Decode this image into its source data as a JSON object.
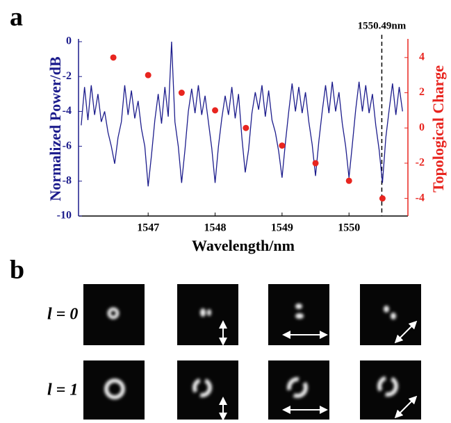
{
  "panel_labels": [
    "a",
    "b"
  ],
  "chart_data": {
    "type": "line",
    "xlabel": "Wavelength/nm",
    "ylabel": "Normalized Power/dB",
    "y2label": "Topological Charge",
    "xlim": [
      1545.96,
      1550.88
    ],
    "xticks": [
      1547,
      1548,
      1549,
      1550
    ],
    "ylim": [
      -10,
      0
    ],
    "yticks": [
      -10,
      -8,
      -6,
      -4,
      -2,
      0
    ],
    "y2lim": [
      -5,
      4.9
    ],
    "y2ticks": [
      -4,
      -2,
      0,
      2,
      4
    ],
    "y_color": "#1c1c8c",
    "y2_color": "#e8251f",
    "series": [
      {
        "type": "line",
        "color": "#1c1c8c",
        "x": [
          1546.0,
          1546.05,
          1546.1,
          1546.15,
          1546.2,
          1546.25,
          1546.3,
          1546.35,
          1546.4,
          1546.45,
          1546.5,
          1546.55,
          1546.6,
          1546.65,
          1546.7,
          1546.75,
          1546.8,
          1546.85,
          1546.9,
          1546.95,
          1547.0,
          1547.05,
          1547.1,
          1547.15,
          1547.2,
          1547.25,
          1547.3,
          1547.35,
          1547.4,
          1547.45,
          1547.5,
          1547.55,
          1547.6,
          1547.65,
          1547.7,
          1547.75,
          1547.8,
          1547.85,
          1547.9,
          1547.95,
          1548.0,
          1548.05,
          1548.1,
          1548.15,
          1548.2,
          1548.25,
          1548.3,
          1548.35,
          1548.4,
          1548.45,
          1548.5,
          1548.55,
          1548.6,
          1548.65,
          1548.7,
          1548.75,
          1548.8,
          1548.85,
          1548.9,
          1548.95,
          1549.0,
          1549.05,
          1549.1,
          1549.15,
          1549.2,
          1549.25,
          1549.3,
          1549.35,
          1549.4,
          1549.45,
          1549.5,
          1549.55,
          1549.6,
          1549.65,
          1549.7,
          1549.75,
          1549.8,
          1549.85,
          1549.9,
          1549.95,
          1550.0,
          1550.05,
          1550.1,
          1550.15,
          1550.2,
          1550.25,
          1550.3,
          1550.35,
          1550.4,
          1550.45,
          1550.5,
          1550.55,
          1550.6,
          1550.65,
          1550.7,
          1550.75,
          1550.8
        ],
        "values": [
          -4.8,
          -2.6,
          -4.5,
          -2.5,
          -4.2,
          -3.0,
          -4.6,
          -4.0,
          -5.2,
          -6.0,
          -7.0,
          -5.5,
          -4.6,
          -2.5,
          -4.2,
          -2.8,
          -4.4,
          -3.4,
          -5.0,
          -6.0,
          -8.3,
          -6.5,
          -4.5,
          -3.0,
          -4.7,
          -2.6,
          -4.3,
          0,
          -4.6,
          -6.0,
          -8.1,
          -6.2,
          -4.0,
          -2.7,
          -4.1,
          -2.5,
          -4.2,
          -3.1,
          -4.6,
          -6.1,
          -8.1,
          -6.0,
          -4.4,
          -3.1,
          -4.2,
          -2.6,
          -4.4,
          -3.0,
          -5.5,
          -7.5,
          -6.2,
          -4.1,
          -2.9,
          -3.9,
          -2.5,
          -4.3,
          -2.8,
          -4.5,
          -5.2,
          -6.3,
          -7.8,
          -5.8,
          -4.0,
          -2.4,
          -4.0,
          -2.6,
          -4.1,
          -2.9,
          -4.6,
          -5.9,
          -7.7,
          -5.7,
          -4.0,
          -2.5,
          -4.1,
          -2.3,
          -4.0,
          -2.9,
          -4.7,
          -6.0,
          -7.8,
          -5.9,
          -3.9,
          -2.3,
          -4.0,
          -2.5,
          -4.1,
          -3.0,
          -4.8,
          -6.2,
          -8.1,
          -5.5,
          -3.9,
          -2.4,
          -4.2,
          -2.6,
          -4.0
        ]
      },
      {
        "type": "scatter",
        "axis": "y2",
        "color": "#e8251f",
        "x": [
          1546.48,
          1547.0,
          1547.5,
          1548.0,
          1548.46,
          1549.0,
          1549.5,
          1550.0,
          1550.5
        ],
        "values": [
          4,
          3,
          2,
          1,
          0,
          -1,
          -2,
          -3,
          -4
        ]
      }
    ],
    "annotations": [
      {
        "text": "1550.49nm",
        "x": 1550.49
      }
    ]
  },
  "panel_b": {
    "row_labels": [
      "l = 0",
      "l = 1"
    ]
  }
}
